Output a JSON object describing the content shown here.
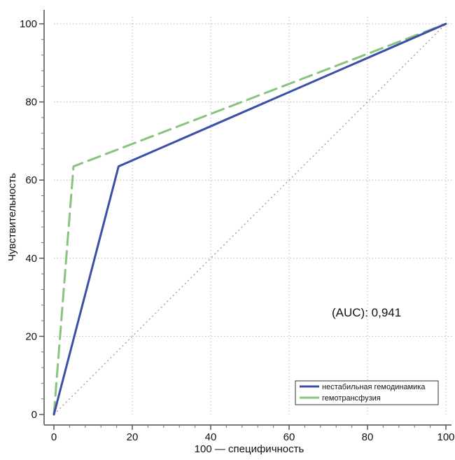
{
  "chart_data": {
    "type": "line",
    "title": "",
    "xlabel": "100 — специфичность",
    "ylabel": "Чувствительность",
    "xlim": [
      0,
      100
    ],
    "ylim": [
      0,
      100
    ],
    "x_ticks": [
      0,
      20,
      40,
      60,
      80,
      100
    ],
    "y_ticks": [
      0,
      20,
      40,
      60,
      80,
      100
    ],
    "x_tick_labels": [
      "0",
      "20",
      "40",
      "60",
      "80",
      "100"
    ],
    "y_tick_labels": [
      "0",
      "20",
      "40",
      "60",
      "80",
      "100"
    ],
    "grid": true,
    "legend_position": "bottom-right",
    "annotation": "(AUC): 0,941",
    "series": [
      {
        "name": "нестабильная гемодинамика",
        "color": "#3c4fa8",
        "style": "solid",
        "x": [
          0,
          16.5,
          100
        ],
        "y": [
          0,
          63.5,
          100
        ]
      },
      {
        "name": "гемотрансфузия",
        "color": "#88c47e",
        "style": "dashed",
        "x": [
          0,
          5,
          100
        ],
        "y": [
          0,
          63.5,
          100
        ]
      }
    ],
    "reference_line": {
      "color": "#c49a8e",
      "style": "dotted",
      "x": [
        0,
        100
      ],
      "y": [
        0,
        100
      ]
    }
  }
}
